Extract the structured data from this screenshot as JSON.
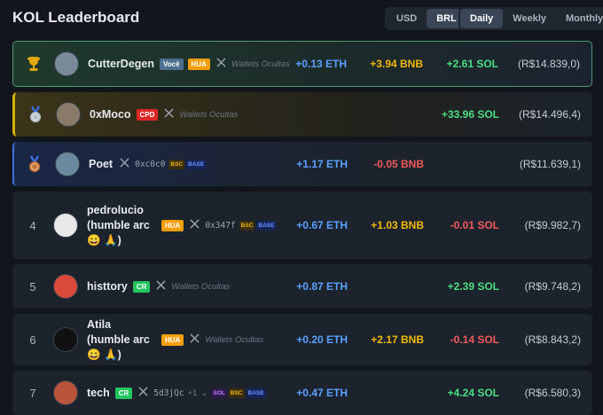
{
  "header": {
    "title": "KOL Leaderboard",
    "currencies": [
      "USD",
      "BRL"
    ],
    "active_currency": 1,
    "periods": [
      "Daily",
      "Weekly",
      "Monthly"
    ],
    "active_period": 0
  },
  "rows": [
    {
      "medal": "gold",
      "name": "CutterDegen",
      "avatar": "#7a8a9a",
      "badges": [
        {
          "text": "Você",
          "color": "#4c6f8f"
        },
        {
          "text": "HUA",
          "color": "#f59e0b"
        }
      ],
      "hidden": "Wallets Ocultas",
      "eth": "+0.13 ETH",
      "bnb": "+3.94 BNB",
      "sol": "+2.61 SOL",
      "total": "(R$14.839,0)"
    },
    {
      "medal": "silver",
      "name": "0xMoco",
      "avatar": "#8a7a6a",
      "badges": [
        {
          "text": "CPD",
          "color": "#dc2626"
        }
      ],
      "hidden": "Wallets Ocultas",
      "sol": "+33.96 SOL",
      "total": "(R$14.496,4)"
    },
    {
      "medal": "bronze",
      "name": "Poet",
      "avatar": "#6a8aa0",
      "address": "0xc0c0",
      "chains": [
        "BSC",
        "BASE"
      ],
      "eth": "+1.17 ETH",
      "bnb": "-0.05 BNB",
      "total": "(R$11.639,1)"
    },
    {
      "rank": 4,
      "name": "pedrolucio (humble arc 😄 🙏)",
      "avatar": "#e8e8e8",
      "badges": [
        {
          "text": "HUA",
          "color": "#f59e0b"
        }
      ],
      "address": "0x347f",
      "chains": [
        "BSC",
        "BASE"
      ],
      "eth": "+0.67 ETH",
      "bnb": "+1.03 BNB",
      "sol": "-0.01 SOL",
      "total": "(R$9.982,7)"
    },
    {
      "rank": 5,
      "name": "histtory",
      "avatar": "#d94a3a",
      "badges": [
        {
          "text": "CR",
          "color": "#22c55e"
        }
      ],
      "hidden": "Wallets Ocultas",
      "eth": "+0.87 ETH",
      "sol": "+2.39 SOL",
      "total": "(R$9.748,2)"
    },
    {
      "rank": 6,
      "name": "Atila (humble arc 😄 🙏)",
      "avatar": "#111111",
      "badges": [
        {
          "text": "HUA",
          "color": "#f59e0b"
        }
      ],
      "hidden": "Wallets Ocultas",
      "eth": "+0.20 ETH",
      "bnb": "+2.17 BNB",
      "sol": "-0.14 SOL",
      "total": "(R$8.843,2)"
    },
    {
      "rank": 7,
      "name": "tech",
      "avatar": "#b8553a",
      "badges": [
        {
          "text": "CR",
          "color": "#22c55e"
        }
      ],
      "address": "5d3jQc",
      "extra": "+1",
      "chevron": "⌄",
      "chains": [
        "SOL",
        "BSC",
        "BASE"
      ],
      "eth": "+0.47 ETH",
      "sol": "+4.24 SOL",
      "total": "(R$6.580,3)"
    }
  ]
}
